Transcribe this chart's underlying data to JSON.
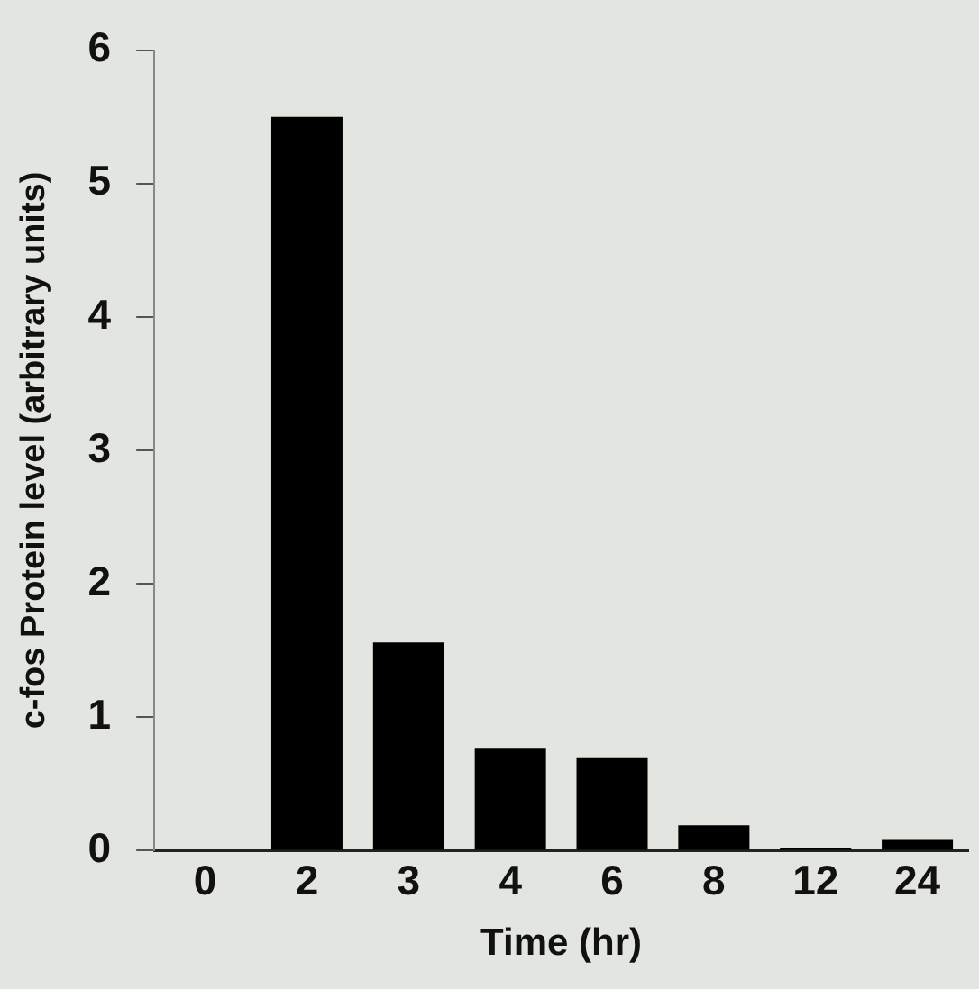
{
  "chart_data": {
    "type": "bar",
    "xlabel": "Time (hr)",
    "ylabel": "c-fos Protein level (arbitrary units)",
    "categories": [
      "0",
      "2",
      "3",
      "4",
      "6",
      "8",
      "12",
      "24"
    ],
    "values": [
      0,
      5.5,
      1.56,
      0.77,
      0.7,
      0.19,
      0.02,
      0.08
    ],
    "color": "#000000",
    "ylim": [
      0,
      6
    ],
    "yticks": [
      0,
      1,
      2,
      3,
      4,
      5,
      6
    ],
    "grid": false,
    "legend": false
  }
}
